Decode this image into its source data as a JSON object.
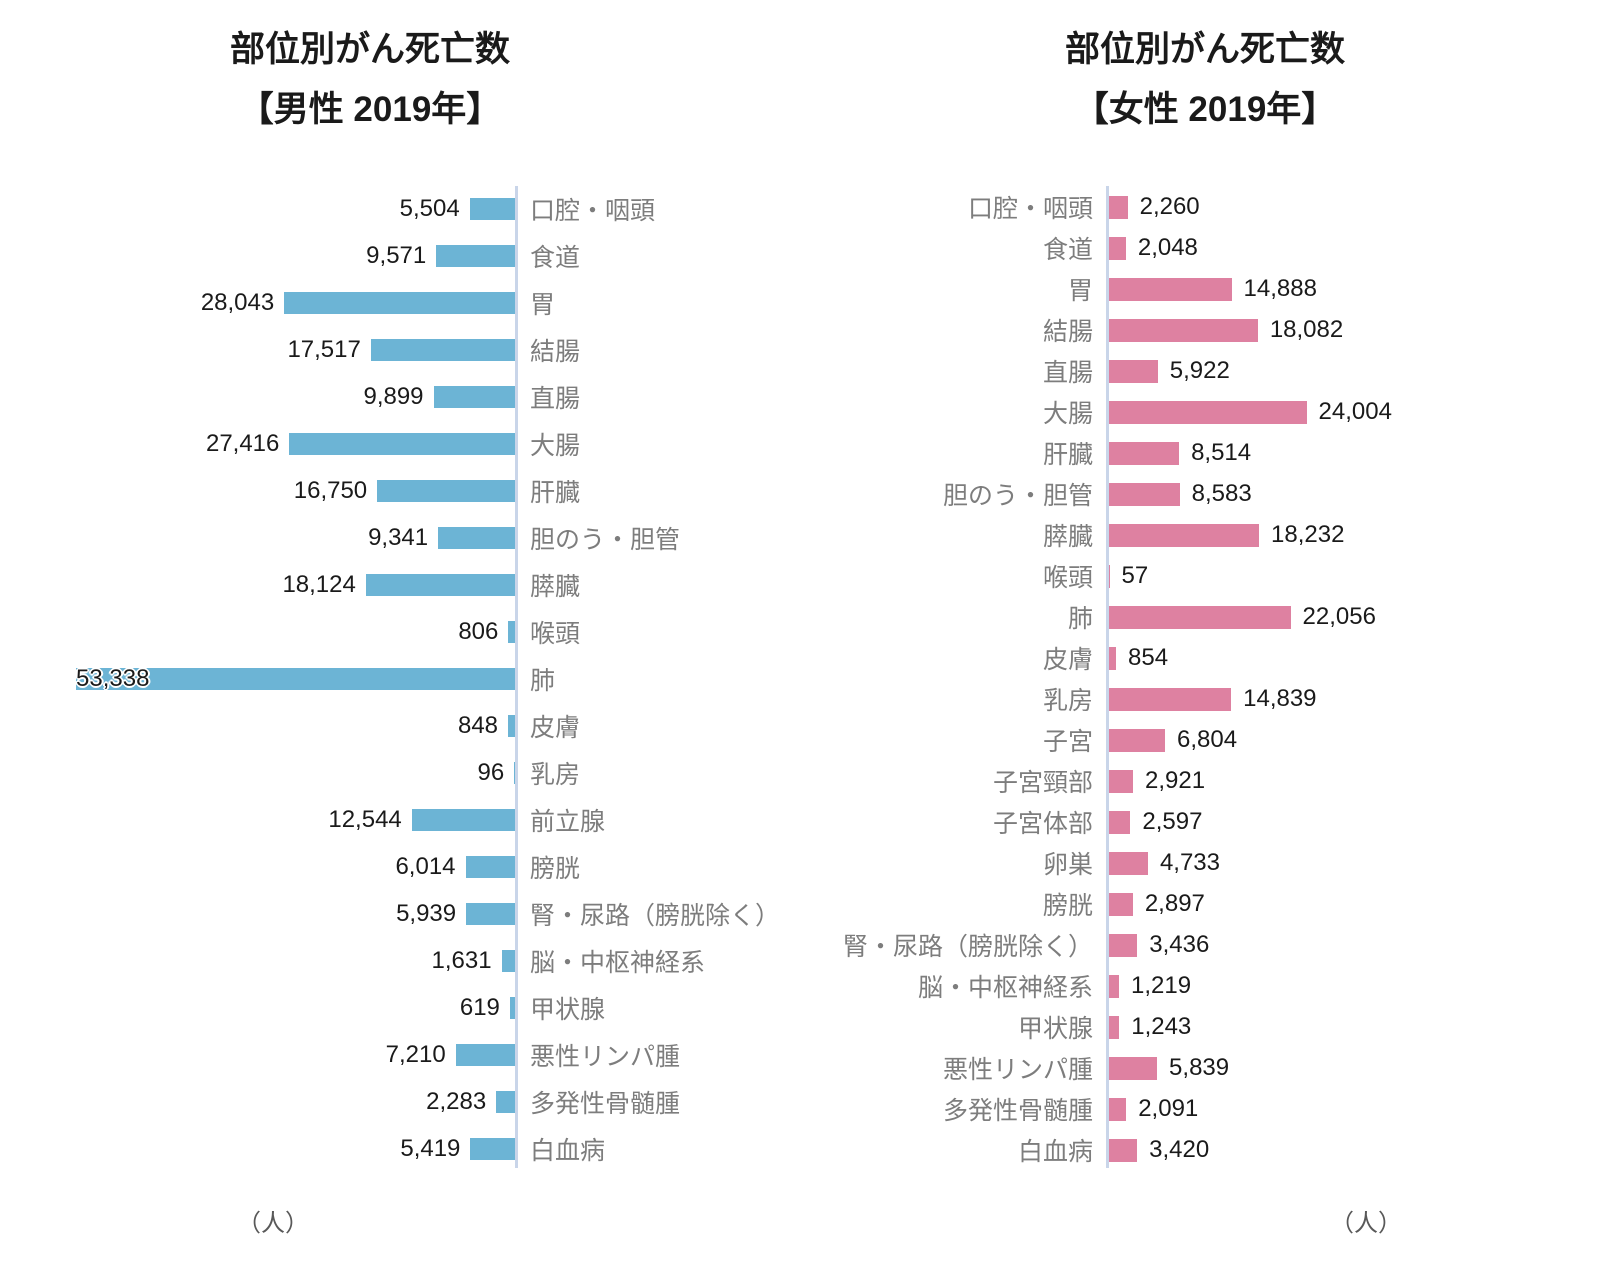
{
  "styles": {
    "male_bar_color": "#6cb4d5",
    "female_bar_color": "#de81a1",
    "axis_color": "#c9d5e9",
    "value_text_color": "#1a1a1a",
    "category_text_color": "#7d7d7d",
    "title_text_color": "#1a1a1a"
  },
  "chart_data": [
    {
      "type": "bar",
      "orientation": "horizontal-bars-extending-left",
      "title": "部位別がん死亡数【男性 2019年】",
      "title_line1": "部位別がん死亡数",
      "title_line2": "【男性 2019年】",
      "unit_label": "（人）",
      "legend": "none",
      "grid": false,
      "bar_color": "#6cb4d5",
      "value_range": [
        0,
        55000
      ],
      "categories": [
        "口腔・咽頭",
        "食道",
        "胃",
        "結腸",
        "直腸",
        "大腸",
        "肝臓",
        "胆のう・胆管",
        "膵臓",
        "喉頭",
        "肺",
        "皮膚",
        "乳房",
        "前立腺",
        "膀胱",
        "腎・尿路（膀胱除く）",
        "脳・中枢神経系",
        "甲状腺",
        "悪性リンパ腫",
        "多発性骨髄腫",
        "白血病"
      ],
      "values": [
        5504,
        9571,
        28043,
        17517,
        9899,
        27416,
        16750,
        9341,
        18124,
        806,
        53338,
        848,
        96,
        12544,
        6014,
        5939,
        1631,
        619,
        7210,
        2283,
        5419
      ]
    },
    {
      "type": "bar",
      "orientation": "horizontal-bars-extending-right",
      "title": "部位別がん死亡数【女性 2019年】",
      "title_line1": "部位別がん死亡数",
      "title_line2": "【女性 2019年】",
      "unit_label": "（人）",
      "legend": "none",
      "grid": false,
      "bar_color": "#de81a1",
      "value_range": [
        0,
        25000
      ],
      "categories": [
        "口腔・咽頭",
        "食道",
        "胃",
        "結腸",
        "直腸",
        "大腸",
        "肝臓",
        "胆のう・胆管",
        "膵臓",
        "喉頭",
        "肺",
        "皮膚",
        "乳房",
        "子宮",
        "子宮頸部",
        "子宮体部",
        "卵巣",
        "膀胱",
        "腎・尿路（膀胱除く）",
        "脳・中枢神経系",
        "甲状腺",
        "悪性リンパ腫",
        "多発性骨髄腫",
        "白血病"
      ],
      "values": [
        2260,
        2048,
        14888,
        18082,
        5922,
        24004,
        8514,
        8583,
        18232,
        57,
        22056,
        854,
        14839,
        6804,
        2921,
        2597,
        4733,
        2897,
        3436,
        1219,
        1243,
        5839,
        2091,
        3420
      ]
    }
  ]
}
